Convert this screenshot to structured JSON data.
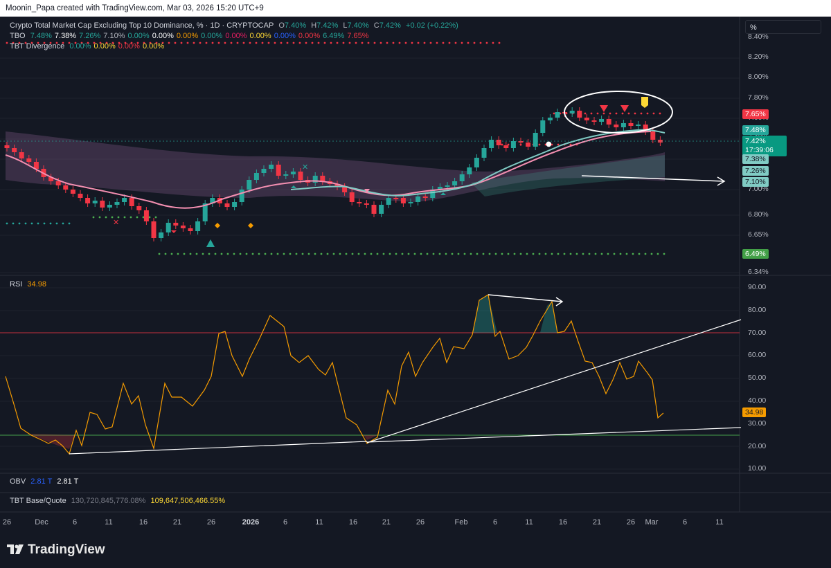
{
  "header": {
    "credit": "Moonin_Papa created with TradingView.com, Mar 03, 2026 15:20 UTC+9"
  },
  "symbol": {
    "title": "Crypto Total Market Cap Excluding Top 10 Dominance, % · 1D · CRYPTOCAP",
    "o_label": "O",
    "o": "7.40%",
    "h_label": "H",
    "h": "7.42%",
    "l_label": "L",
    "l": "7.40%",
    "c_label": "C",
    "c": "7.42%",
    "change": "+0.02 (+0.22%)"
  },
  "tbo": {
    "name": "TBO",
    "values": [
      "7.48%",
      "7.38%",
      "7.26%",
      "7.10%",
      "0.00%",
      "0.00%",
      "0.00%",
      "0.00%",
      "0.00%",
      "0.00%",
      "0.00%",
      "0.00%",
      "6.49%",
      "7.65%"
    ],
    "colors": [
      "#26a69a",
      "#ffffff",
      "#26a69a",
      "#b2b5be",
      "#26a69a",
      "#ffffff",
      "#f59b00",
      "#26a69a",
      "#e91e63",
      "#fdd835",
      "#2962ff",
      "#f23645",
      "#26a69a",
      "#f23645"
    ]
  },
  "tbt_div": {
    "name": "TBT Divergence",
    "values": [
      "0.00%",
      "0.00%",
      "0.00%",
      "0.00%"
    ],
    "colors": [
      "#26a69a",
      "#fdd835",
      "#f23645",
      "#fdd835"
    ]
  },
  "unit": "%",
  "price_axis": [
    "8.40%",
    "8.20%",
    "8.00%",
    "7.80%",
    "7.60%",
    "7.40%",
    "7.20%",
    "7.00%",
    "6.80%",
    "6.65%",
    "6.34%"
  ],
  "price_tags": {
    "t765": "7.65%",
    "t748": "7.48%",
    "t742": "7.42%",
    "countdown": "17:39:06",
    "t738": "7.38%",
    "t726": "7.26%",
    "t710": "7.10%",
    "t649": "6.49%"
  },
  "rsi": {
    "name": "RSI",
    "value": "34.98",
    "axis": [
      "90.00",
      "80.00",
      "70.00",
      "60.00",
      "50.00",
      "40.00",
      "30.00",
      "20.00",
      "10.00"
    ],
    "tag": "34.98"
  },
  "obv": {
    "name": "OBV",
    "v1": "2.81 T",
    "v2": "2.81 T"
  },
  "tbt_bq": {
    "name": "TBT Base/Quote",
    "v1": "130,720,845,776.08%",
    "v2": "109,647,506,466.55%"
  },
  "time_axis": [
    {
      "label": "26",
      "x": 0
    },
    {
      "label": "Dec",
      "x": 0
    },
    {
      "label": "6",
      "x": 0
    },
    {
      "label": "11",
      "x": 0
    },
    {
      "label": "16",
      "x": 0
    },
    {
      "label": "21",
      "x": 0
    },
    {
      "label": "26",
      "x": 0
    },
    {
      "label": "2026",
      "x": 0,
      "bold": true
    },
    {
      "label": "6",
      "x": 0
    },
    {
      "label": "11",
      "x": 0
    },
    {
      "label": "16",
      "x": 0
    },
    {
      "label": "21",
      "x": 0
    },
    {
      "label": "26",
      "x": 0
    },
    {
      "label": "Feb",
      "x": 0
    },
    {
      "label": "6",
      "x": 0
    },
    {
      "label": "11",
      "x": 0
    },
    {
      "label": "16",
      "x": 0
    },
    {
      "label": "21",
      "x": 0
    },
    {
      "label": "26",
      "x": 0
    },
    {
      "label": "Mar",
      "x": 0
    },
    {
      "label": "6",
      "x": 0
    },
    {
      "label": "11",
      "x": 0
    }
  ],
  "footer": {
    "brand": "TradingView"
  },
  "colors": {
    "up": "#26a69a",
    "down": "#f23645",
    "rsi": "#f59b00",
    "bg": "#141823"
  }
}
